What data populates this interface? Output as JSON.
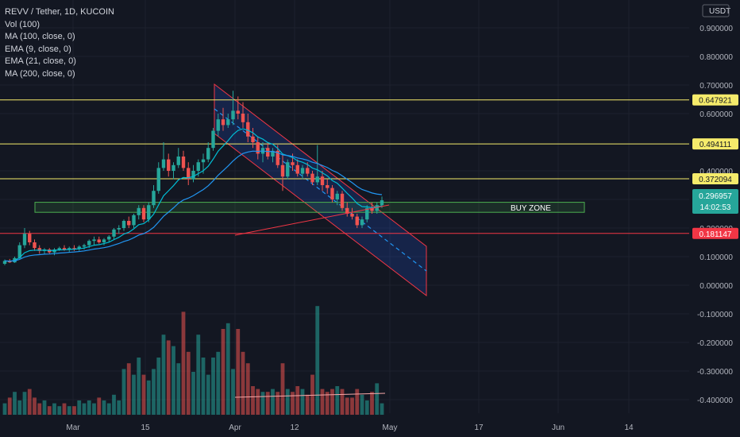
{
  "header": {
    "title": "REVV / Tether, 1D, KUCOIN",
    "indicators": [
      "Vol (100)",
      "MA (100, close, 0)",
      "EMA (9, close, 0)",
      "EMA (21, close, 0)",
      "MA (200, close, 0)"
    ]
  },
  "currency": "USDT",
  "price_axis": [
    "0.900000",
    "0.800000",
    "0.700000",
    "0.600000",
    "0.400000",
    "0.300000",
    "0.200000",
    "0.100000",
    "0.000000",
    "-0.100000",
    "-0.200000",
    "-0.300000",
    "-0.400000"
  ],
  "time_axis": [
    "Mar",
    "15",
    "Apr",
    "12",
    "May",
    "17",
    "Jun",
    "14"
  ],
  "levels": [
    {
      "label": "0.647921",
      "color": "#f5eb6b"
    },
    {
      "label": "0.494111",
      "color": "#f5eb6b"
    },
    {
      "label": "0.372094",
      "color": "#f5eb6b"
    },
    {
      "label": "0.181147",
      "color": "#f23645"
    }
  ],
  "last_price": {
    "value": "0.296957",
    "countdown": "14:02:53",
    "color": "#26a69a"
  },
  "buy_zone": {
    "label": "BUY ZONE",
    "color": "#4caf50"
  },
  "colors": {
    "up": "#26a69a",
    "down": "#ef5350",
    "background": "#131722",
    "channel": "#2962ff",
    "ema": "#00bcd4",
    "ma": "#f23645"
  },
  "chart_data": {
    "type": "candlestick",
    "title": "REVV / Tether, 1D, KUCOIN",
    "ylim": [
      -0.43,
      0.92
    ],
    "series": [
      {
        "name": "REVV / Tether",
        "ohlc": [
          [
            0.075,
            0.09,
            0.07,
            0.085
          ],
          [
            0.085,
            0.092,
            0.078,
            0.08
          ],
          [
            0.08,
            0.1,
            0.078,
            0.095
          ],
          [
            0.095,
            0.15,
            0.09,
            0.14
          ],
          [
            0.14,
            0.2,
            0.13,
            0.18
          ],
          [
            0.18,
            0.19,
            0.14,
            0.15
          ],
          [
            0.15,
            0.16,
            0.12,
            0.13
          ],
          [
            0.13,
            0.14,
            0.11,
            0.12
          ],
          [
            0.12,
            0.13,
            0.11,
            0.125
          ],
          [
            0.125,
            0.13,
            0.11,
            0.115
          ],
          [
            0.115,
            0.13,
            0.105,
            0.125
          ],
          [
            0.125,
            0.135,
            0.12,
            0.13
          ],
          [
            0.13,
            0.14,
            0.12,
            0.125
          ],
          [
            0.125,
            0.135,
            0.115,
            0.13
          ],
          [
            0.13,
            0.14,
            0.12,
            0.128
          ],
          [
            0.128,
            0.14,
            0.12,
            0.135
          ],
          [
            0.135,
            0.145,
            0.125,
            0.14
          ],
          [
            0.14,
            0.16,
            0.13,
            0.155
          ],
          [
            0.155,
            0.17,
            0.14,
            0.16
          ],
          [
            0.16,
            0.17,
            0.145,
            0.15
          ],
          [
            0.15,
            0.165,
            0.14,
            0.16
          ],
          [
            0.16,
            0.175,
            0.15,
            0.17
          ],
          [
            0.17,
            0.2,
            0.16,
            0.195
          ],
          [
            0.195,
            0.21,
            0.18,
            0.2
          ],
          [
            0.2,
            0.23,
            0.19,
            0.225
          ],
          [
            0.225,
            0.24,
            0.2,
            0.21
          ],
          [
            0.21,
            0.25,
            0.2,
            0.245
          ],
          [
            0.245,
            0.28,
            0.23,
            0.27
          ],
          [
            0.27,
            0.28,
            0.22,
            0.23
          ],
          [
            0.23,
            0.29,
            0.22,
            0.28
          ],
          [
            0.28,
            0.35,
            0.27,
            0.33
          ],
          [
            0.33,
            0.43,
            0.32,
            0.41
          ],
          [
            0.41,
            0.5,
            0.4,
            0.44
          ],
          [
            0.44,
            0.46,
            0.38,
            0.4
          ],
          [
            0.4,
            0.43,
            0.37,
            0.42
          ],
          [
            0.42,
            0.48,
            0.41,
            0.45
          ],
          [
            0.45,
            0.47,
            0.4,
            0.41
          ],
          [
            0.41,
            0.43,
            0.35,
            0.37
          ],
          [
            0.37,
            0.42,
            0.36,
            0.4
          ],
          [
            0.4,
            0.44,
            0.38,
            0.43
          ],
          [
            0.43,
            0.46,
            0.39,
            0.44
          ],
          [
            0.44,
            0.5,
            0.43,
            0.48
          ],
          [
            0.48,
            0.55,
            0.47,
            0.54
          ],
          [
            0.54,
            0.6,
            0.52,
            0.58
          ],
          [
            0.58,
            0.62,
            0.54,
            0.56
          ],
          [
            0.56,
            0.6,
            0.55,
            0.58
          ],
          [
            0.58,
            0.68,
            0.56,
            0.61
          ],
          [
            0.61,
            0.66,
            0.58,
            0.6
          ],
          [
            0.6,
            0.64,
            0.55,
            0.57
          ],
          [
            0.57,
            0.6,
            0.5,
            0.52
          ],
          [
            0.52,
            0.55,
            0.48,
            0.5
          ],
          [
            0.5,
            0.52,
            0.44,
            0.46
          ],
          [
            0.46,
            0.5,
            0.43,
            0.48
          ],
          [
            0.48,
            0.5,
            0.44,
            0.45
          ],
          [
            0.45,
            0.48,
            0.43,
            0.47
          ],
          [
            0.47,
            0.49,
            0.41,
            0.42
          ],
          [
            0.42,
            0.46,
            0.33,
            0.38
          ],
          [
            0.38,
            0.44,
            0.37,
            0.43
          ],
          [
            0.43,
            0.46,
            0.4,
            0.42
          ],
          [
            0.42,
            0.44,
            0.38,
            0.39
          ],
          [
            0.39,
            0.42,
            0.37,
            0.41
          ],
          [
            0.41,
            0.43,
            0.38,
            0.39
          ],
          [
            0.39,
            0.4,
            0.35,
            0.36
          ],
          [
            0.36,
            0.49,
            0.35,
            0.38
          ],
          [
            0.38,
            0.4,
            0.33,
            0.35
          ],
          [
            0.35,
            0.37,
            0.32,
            0.34
          ],
          [
            0.34,
            0.35,
            0.29,
            0.3
          ],
          [
            0.3,
            0.33,
            0.28,
            0.32
          ],
          [
            0.32,
            0.33,
            0.26,
            0.27
          ],
          [
            0.27,
            0.29,
            0.24,
            0.25
          ],
          [
            0.25,
            0.27,
            0.23,
            0.24
          ],
          [
            0.24,
            0.25,
            0.2,
            0.21
          ],
          [
            0.21,
            0.24,
            0.2,
            0.23
          ],
          [
            0.23,
            0.28,
            0.22,
            0.27
          ],
          [
            0.27,
            0.29,
            0.25,
            0.26
          ],
          [
            0.26,
            0.29,
            0.25,
            0.28
          ],
          [
            0.28,
            0.31,
            0.27,
            0.297
          ]
        ]
      },
      {
        "name": "Vol (100)",
        "values": [
          4,
          6,
          8,
          5,
          8,
          9,
          6,
          4,
          5,
          3,
          4,
          3,
          4,
          3,
          3,
          5,
          4,
          5,
          4,
          6,
          5,
          4,
          7,
          5,
          16,
          18,
          14,
          20,
          14,
          12,
          16,
          20,
          28,
          26,
          24,
          18,
          36,
          22,
          15,
          28,
          20,
          14,
          20,
          22,
          30,
          32,
          16,
          30,
          22,
          18,
          10,
          9,
          8,
          8,
          9,
          8,
          18,
          9,
          8,
          10,
          9,
          7,
          14,
          38,
          9,
          8,
          9,
          10,
          9,
          6,
          6,
          9,
          7,
          5,
          8,
          11,
          4
        ]
      }
    ],
    "levels": [
      0.647921,
      0.494111,
      0.372094,
      0.181147
    ],
    "buy_zone": [
      0.255,
      0.29
    ]
  }
}
